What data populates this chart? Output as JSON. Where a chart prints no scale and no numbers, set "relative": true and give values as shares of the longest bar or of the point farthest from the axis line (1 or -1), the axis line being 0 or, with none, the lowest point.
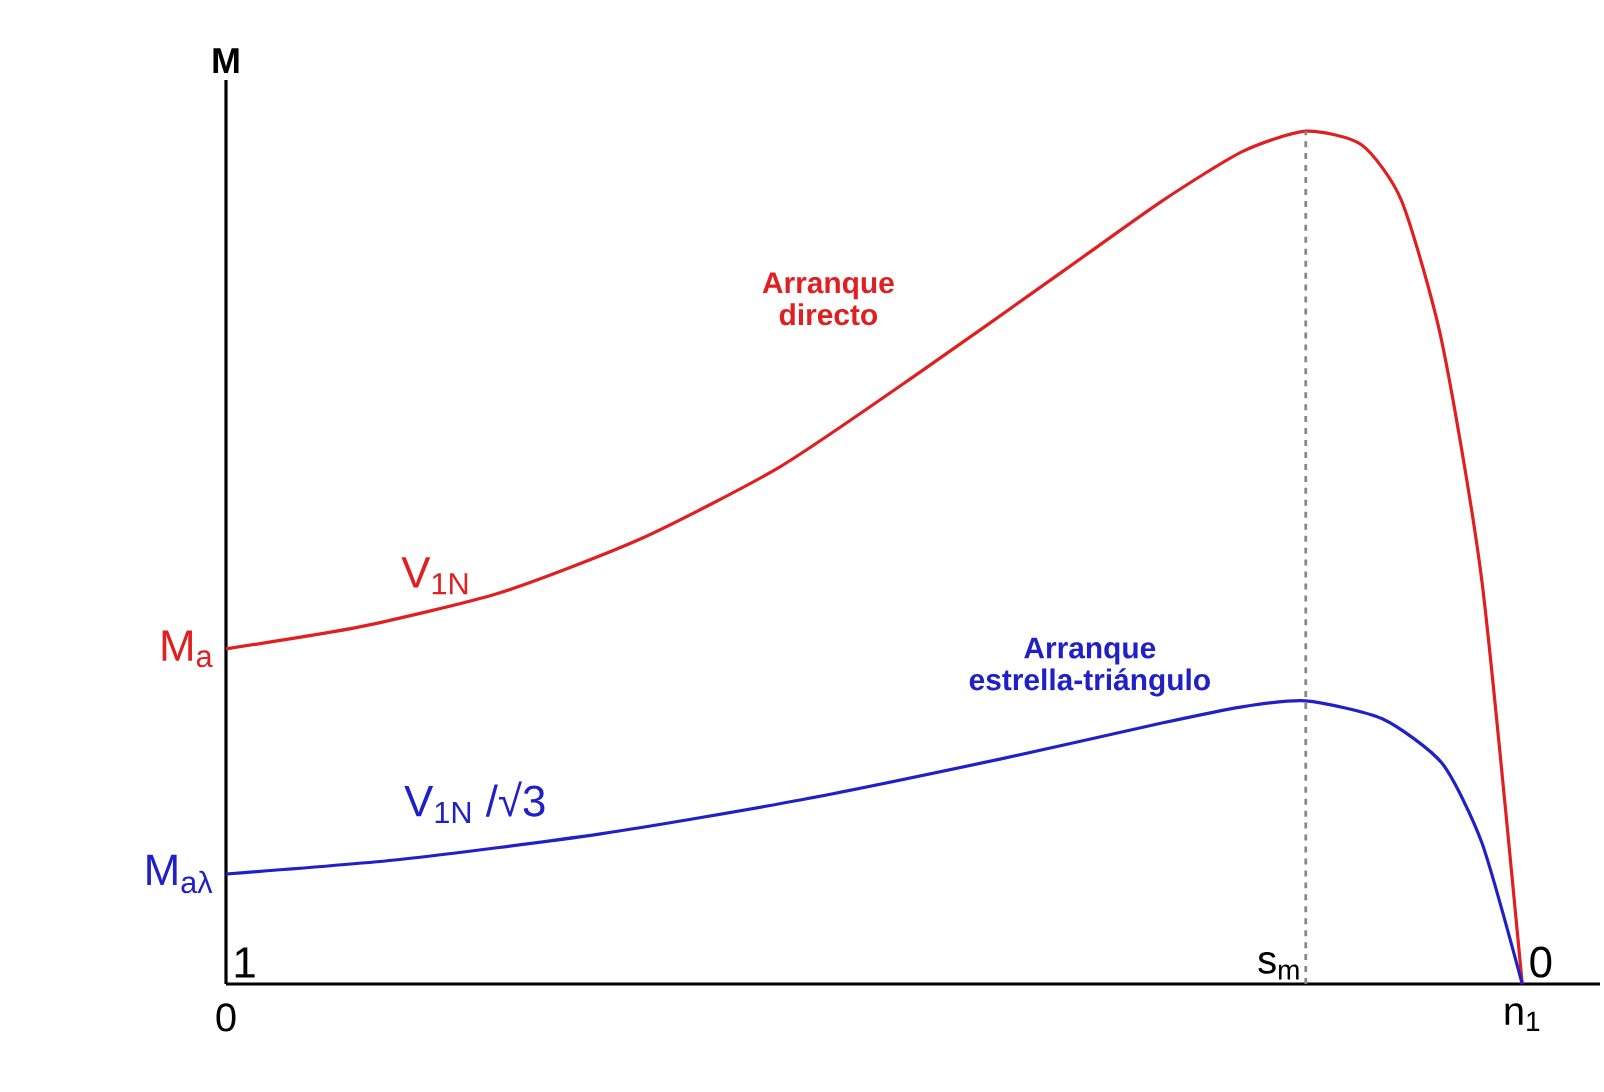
{
  "chart_data": {
    "type": "line",
    "ylabel": "M",
    "relative": true,
    "xlim": [
      0,
      1.06
    ],
    "xticks": [
      {
        "value": 0,
        "label": "0"
      },
      {
        "value": 1,
        "label": "n$_{1}$"
      }
    ],
    "series": [
      {
        "name": "Arranque directo",
        "color": "#e02020",
        "x": [
          0,
          0.104,
          0.212,
          0.32,
          0.428,
          0.536,
          0.645,
          0.722,
          0.784,
          0.833,
          0.876,
          0.907,
          0.938,
          0.969,
          1
        ],
        "values": [
          0.393,
          0.419,
          0.459,
          0.522,
          0.607,
          0.718,
          0.835,
          0.918,
          0.976,
          1.0,
          0.984,
          0.918,
          0.753,
          0.471,
          0
        ]
      },
      {
        "name": "Arranque estrella-triángulo",
        "color": "#2020c8",
        "x": [
          0,
          0.134,
          0.289,
          0.444,
          0.598,
          0.722,
          0.784,
          0.833,
          0.892,
          0.938,
          0.969,
          1
        ],
        "values": [
          0.129,
          0.146,
          0.176,
          0.216,
          0.264,
          0.306,
          0.325,
          0.332,
          0.311,
          0.259,
          0.165,
          0
        ]
      }
    ],
    "ref_lines": [
      {
        "axis": "x",
        "value": 0.833,
        "label": "s$_{m}$",
        "color": "#888888",
        "line_style": "dashed"
      }
    ],
    "annotations": [
      {
        "text": "M$_{a}$",
        "x": 0,
        "y": 0.393
      },
      {
        "text": "M$_{aλ}$",
        "x": 0,
        "y": 0.129
      },
      "V$_{1N}$",
      "V$_{1N}$ /√3",
      "1",
      "0"
    ]
  }
}
